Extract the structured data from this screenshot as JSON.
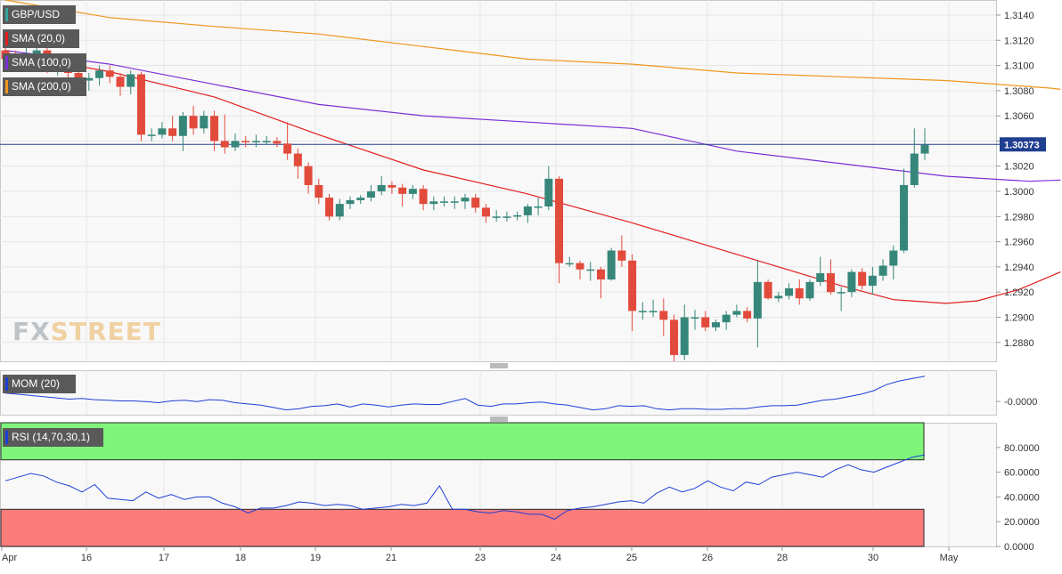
{
  "chart_data": {
    "type": "candlestick",
    "symbol": "GBP/USD",
    "watermark": {
      "part1": "FX",
      "part2": "STREET"
    },
    "last_price": "1.30373",
    "x_labels": [
      "Apr",
      "16",
      "17",
      "18",
      "19",
      "21",
      "23",
      "24",
      "25",
      "26",
      "28",
      "30",
      "May"
    ],
    "y_ticks": [
      "1.3140",
      "1.3120",
      "1.3100",
      "1.3080",
      "1.3060",
      "1.3040",
      "1.3020",
      "1.3000",
      "1.2980",
      "1.2960",
      "1.2940",
      "1.2920",
      "1.2900",
      "1.2880"
    ],
    "ylim": [
      1.2865,
      1.3152
    ],
    "candles": [
      [
        1.3112,
        1.3105,
        1.3118,
        1.3098
      ],
      [
        1.3105,
        1.31,
        1.3112,
        1.3095
      ],
      [
        1.31,
        1.3107,
        1.3114,
        1.3095
      ],
      [
        1.3107,
        1.3112,
        1.3118,
        1.3103
      ],
      [
        1.3112,
        1.3098,
        1.3115,
        1.3094
      ],
      [
        1.3098,
        1.3104,
        1.3108,
        1.3092
      ],
      [
        1.3104,
        1.3094,
        1.3108,
        1.3088
      ],
      [
        1.3094,
        1.3088,
        1.3098,
        1.3082
      ],
      [
        1.3088,
        1.309,
        1.3094,
        1.308
      ],
      [
        1.309,
        1.3096,
        1.31,
        1.3084
      ],
      [
        1.3096,
        1.3091,
        1.31,
        1.3086
      ],
      [
        1.3091,
        1.3083,
        1.3094,
        1.3076
      ],
      [
        1.3083,
        1.3093,
        1.3096,
        1.3077
      ],
      [
        1.3093,
        1.3045,
        1.3095,
        1.304
      ],
      [
        1.3045,
        1.3045,
        1.305,
        1.304
      ],
      [
        1.3045,
        1.305,
        1.3055,
        1.3042
      ],
      [
        1.305,
        1.3044,
        1.306,
        1.304
      ],
      [
        1.3044,
        1.306,
        1.3063,
        1.3032
      ],
      [
        1.306,
        1.305,
        1.3068,
        1.3045
      ],
      [
        1.305,
        1.306,
        1.3064,
        1.3046
      ],
      [
        1.306,
        1.304,
        1.3064,
        1.3032
      ],
      [
        1.304,
        1.3035,
        1.3061,
        1.303
      ],
      [
        1.3035,
        1.304,
        1.3046,
        1.3032
      ],
      [
        1.304,
        1.3039,
        1.3044,
        1.3035
      ],
      [
        1.3039,
        1.304,
        1.3045,
        1.3035
      ],
      [
        1.304,
        1.304,
        1.3044,
        1.3037
      ],
      [
        1.304,
        1.3038,
        1.3043,
        1.3035
      ],
      [
        1.3038,
        1.303,
        1.3055,
        1.3025
      ],
      [
        1.303,
        1.302,
        1.3034,
        1.301
      ],
      [
        1.302,
        1.3005,
        1.3023,
        1.2998
      ],
      [
        1.3005,
        1.2995,
        1.301,
        1.299
      ],
      [
        1.2995,
        1.298,
        1.2998,
        1.2977
      ],
      [
        1.298,
        1.299,
        1.2994,
        1.2977
      ],
      [
        1.299,
        1.2993,
        1.2996,
        1.2986
      ],
      [
        1.2993,
        1.2995,
        1.2997,
        1.299
      ],
      [
        1.2995,
        1.3,
        1.3005,
        1.2992
      ],
      [
        1.3,
        1.3005,
        1.3012,
        1.2997
      ],
      [
        1.3005,
        1.3003,
        1.3008,
        1.2998
      ],
      [
        1.3003,
        1.2998,
        1.3006,
        1.2988
      ],
      [
        1.2998,
        1.3002,
        1.3005,
        1.2994
      ],
      [
        1.3002,
        1.299,
        1.3005,
        1.2985
      ],
      [
        1.299,
        1.2992,
        1.2996,
        1.2985
      ],
      [
        1.2992,
        1.2992,
        1.2996,
        1.2988
      ],
      [
        1.2992,
        1.2992,
        1.2996,
        1.2986
      ],
      [
        1.2992,
        1.2995,
        1.2998,
        1.2986
      ],
      [
        1.2995,
        1.2987,
        1.2998,
        1.2983
      ],
      [
        1.2987,
        1.298,
        1.299,
        1.2975
      ],
      [
        1.298,
        1.298,
        1.2985,
        1.2976
      ],
      [
        1.298,
        1.298,
        1.2984,
        1.2976
      ],
      [
        1.298,
        1.2981,
        1.2984,
        1.2977
      ],
      [
        1.2981,
        1.2988,
        1.299,
        1.2975
      ],
      [
        1.2988,
        1.2988,
        1.2995,
        1.2981
      ],
      [
        1.2988,
        1.301,
        1.302,
        1.2985
      ],
      [
        1.301,
        1.2943,
        1.3012,
        1.2927
      ],
      [
        1.2943,
        1.2943,
        1.2948,
        1.294
      ],
      [
        1.2943,
        1.2938,
        1.2945,
        1.293
      ],
      [
        1.2938,
        1.2938,
        1.2944,
        1.2929
      ],
      [
        1.2938,
        1.293,
        1.294,
        1.2915
      ],
      [
        1.293,
        1.2953,
        1.2955,
        1.2929
      ],
      [
        1.2953,
        1.2945,
        1.2965,
        1.294
      ],
      [
        1.2945,
        1.2905,
        1.295,
        1.2889
      ],
      [
        1.2905,
        1.2905,
        1.2912,
        1.2898
      ],
      [
        1.2905,
        1.2905,
        1.2914,
        1.29
      ],
      [
        1.2905,
        1.2898,
        1.2915,
        1.2885
      ],
      [
        1.2898,
        1.287,
        1.2902,
        1.2865
      ],
      [
        1.287,
        1.29,
        1.291,
        1.2866
      ],
      [
        1.29,
        1.29,
        1.2906,
        1.289
      ],
      [
        1.29,
        1.2892,
        1.2905,
        1.2889
      ],
      [
        1.2892,
        1.2896,
        1.2898,
        1.2889
      ],
      [
        1.2896,
        1.2902,
        1.2905,
        1.289
      ],
      [
        1.2902,
        1.2905,
        1.291,
        1.29
      ],
      [
        1.2905,
        1.2899,
        1.2908,
        1.2896
      ],
      [
        1.2899,
        1.2928,
        1.2945,
        1.2876
      ],
      [
        1.2928,
        1.2915,
        1.293,
        1.2914
      ],
      [
        1.2915,
        1.2917,
        1.292,
        1.2912
      ],
      [
        1.2917,
        1.2923,
        1.2927,
        1.2914
      ],
      [
        1.2923,
        1.2915,
        1.293,
        1.291
      ],
      [
        1.2915,
        1.2928,
        1.293,
        1.2913
      ],
      [
        1.2928,
        1.2935,
        1.2948,
        1.2925
      ],
      [
        1.2935,
        1.292,
        1.2946,
        1.2918
      ],
      [
        1.292,
        1.292,
        1.2924,
        1.2905
      ],
      [
        1.292,
        1.2936,
        1.2938,
        1.2916
      ],
      [
        1.2936,
        1.2925,
        1.2939,
        1.2922
      ],
      [
        1.2925,
        1.2933,
        1.294,
        1.2918
      ],
      [
        1.2933,
        1.2941,
        1.2946,
        1.2929
      ],
      [
        1.2941,
        1.2953,
        1.2957,
        1.293
      ],
      [
        1.2953,
        1.3005,
        1.3018,
        1.2951
      ],
      [
        1.3005,
        1.303,
        1.305,
        1.3003
      ],
      [
        1.303,
        1.3037,
        1.305,
        1.3025
      ]
    ],
    "series": [
      {
        "name": "SMA (20,0)",
        "color": "#e31e1e",
        "values": [
          [
            0,
            1.311
          ],
          [
            10,
            1.3095
          ],
          [
            20,
            1.3075
          ],
          [
            30,
            1.3045
          ],
          [
            40,
            1.3017
          ],
          [
            50,
            1.2998
          ],
          [
            60,
            1.2975
          ],
          [
            70,
            1.295
          ],
          [
            80,
            1.2925
          ],
          [
            85,
            1.2914
          ],
          [
            90,
            1.2911
          ],
          [
            93,
            1.2913
          ],
          [
            97,
            1.2922
          ],
          [
            101,
            1.2936
          ]
        ]
      },
      {
        "name": "SMA (100,0)",
        "color": "#7b2fd6",
        "values": [
          [
            0,
            1.3112
          ],
          [
            10,
            1.3101
          ],
          [
            20,
            1.3085
          ],
          [
            30,
            1.3069
          ],
          [
            40,
            1.306
          ],
          [
            50,
            1.3055
          ],
          [
            60,
            1.305
          ],
          [
            70,
            1.3032
          ],
          [
            80,
            1.3022
          ],
          [
            90,
            1.3012
          ],
          [
            98,
            1.3008
          ],
          [
            101,
            1.3009
          ]
        ]
      },
      {
        "name": "SMA (200,0)",
        "color": "#f0961e",
        "values": [
          [
            0,
            1.3152
          ],
          [
            10,
            1.3138
          ],
          [
            20,
            1.3131
          ],
          [
            30,
            1.3125
          ],
          [
            40,
            1.3115
          ],
          [
            50,
            1.3105
          ],
          [
            60,
            1.3101
          ],
          [
            70,
            1.3094
          ],
          [
            80,
            1.3091
          ],
          [
            90,
            1.3088
          ],
          [
            100,
            1.3082
          ],
          [
            101,
            1.3081
          ]
        ]
      }
    ],
    "indicators": {
      "mom": {
        "label": "MOM (20)",
        "tick": "-0.0000",
        "values": [
          0.0014,
          0.0012,
          0.001,
          0.0008,
          0.0006,
          0.0004,
          0.0005,
          0.0003,
          0.0002,
          0.0001,
          0.0001,
          0.0,
          -0.0002,
          0.0001,
          0.0002,
          0.0,
          0.0003,
          0.0002,
          -0.0002,
          -0.0004,
          -0.0006,
          -0.001,
          -0.0014,
          -0.0012,
          -0.0008,
          -0.0007,
          -0.0004,
          -0.0009,
          -0.0004,
          -0.0006,
          -0.0009,
          -0.0006,
          -0.0004,
          -0.0005,
          -0.0005,
          0.0,
          0.0005,
          -0.0006,
          -0.0008,
          -0.0004,
          -0.0004,
          -0.0002,
          -0.0001,
          -0.0004,
          -0.0006,
          -0.001,
          -0.0014,
          -0.0012,
          -0.0007,
          -0.0008,
          -0.0007,
          -0.0012,
          -0.0014,
          -0.0012,
          -0.0012,
          -0.0013,
          -0.0013,
          -0.0012,
          -0.0012,
          -0.0009,
          -0.0007,
          -0.0007,
          -0.0006,
          -0.0002,
          0.0002,
          0.0004,
          0.0008,
          0.0012,
          0.0018,
          0.0028,
          0.0034,
          0.0038,
          0.0042
        ]
      },
      "rsi": {
        "label": "RSI (14,70,30,1)",
        "overbought": 70,
        "oversold": 30,
        "ticks": [
          "80.0000",
          "60.0000",
          "40.0000",
          "20.0000",
          "0.0000"
        ],
        "values": [
          53,
          56,
          59,
          57,
          52,
          49,
          44,
          50,
          39,
          38,
          37,
          44,
          39,
          42,
          38,
          40,
          40,
          35,
          32,
          27,
          31,
          31,
          33,
          36,
          35,
          33,
          34,
          33,
          30,
          31,
          32,
          34,
          33,
          35,
          49,
          30,
          30,
          28,
          27,
          29,
          28,
          26,
          26,
          22,
          29,
          31,
          32,
          34,
          36,
          37,
          35,
          43,
          48,
          44,
          47,
          53,
          48,
          45,
          52,
          50,
          56,
          58,
          60,
          58,
          56,
          62,
          66,
          62,
          60,
          64,
          68,
          72,
          74
        ]
      }
    }
  }
}
